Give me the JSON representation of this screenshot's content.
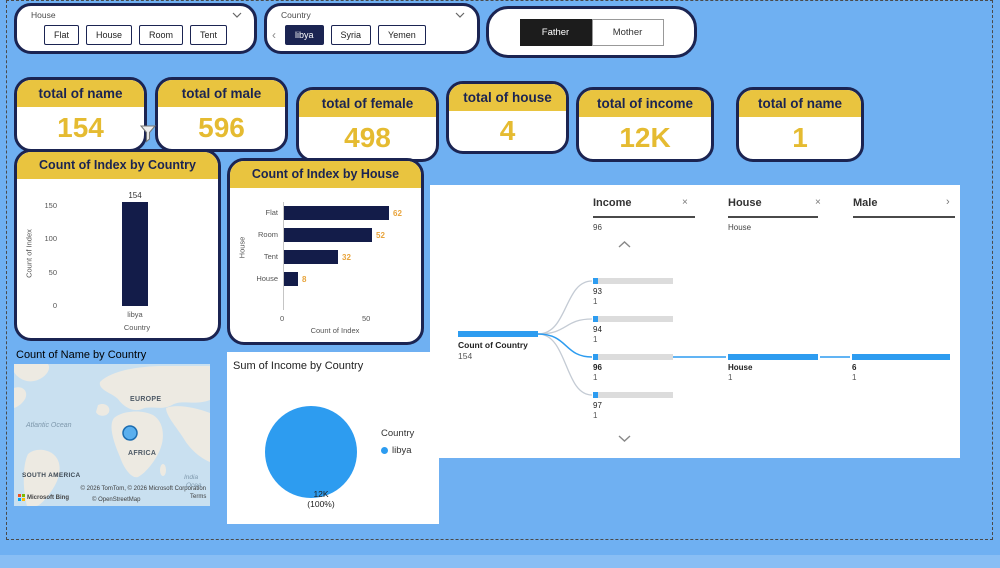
{
  "page": {
    "background": "#6FB0F2",
    "accent_navy": "#1B2452",
    "accent_yellow": "#E9C43F",
    "accent_blue": "#2D9CF0"
  },
  "icons": {
    "nav_left": "‹",
    "close": "×",
    "chevron_right": "›"
  },
  "slicers": {
    "house": {
      "header": "House",
      "options": [
        "Flat",
        "House",
        "Room",
        "Tent"
      ]
    },
    "country": {
      "header": "Country",
      "options": [
        "libya",
        "Syria",
        "Yemen"
      ],
      "selected": "libya"
    },
    "parent": {
      "options": [
        "Father",
        "Mother"
      ],
      "selected": "Father"
    }
  },
  "cards": [
    {
      "title": "total of name",
      "value": "154"
    },
    {
      "title": "total of male",
      "value": "596"
    },
    {
      "title": "total of female",
      "value": "498"
    },
    {
      "title": "total of house",
      "value": "4"
    },
    {
      "title": "total of income",
      "value": "12K"
    },
    {
      "title": "total of name",
      "value": "1"
    }
  ],
  "column_chart": {
    "title": "Count of Index by Country",
    "bar_label": "154",
    "category": "libya",
    "x_label": "Country",
    "y_label": "Count of Index",
    "y_ticks": [
      "150",
      "100",
      "50",
      "0"
    ]
  },
  "hbar_chart": {
    "title": "Count of Index by House",
    "x_label": "Count of Index",
    "y_label": "House",
    "x_ticks": [
      "0",
      "50"
    ],
    "rows": [
      {
        "category": "Flat",
        "value": "62"
      },
      {
        "category": "Room",
        "value": "52"
      },
      {
        "category": "Tent",
        "value": "32"
      },
      {
        "category": "House",
        "value": "8"
      }
    ]
  },
  "tree": {
    "columns": [
      {
        "label": "Income",
        "sub": "96"
      },
      {
        "label": "House",
        "sub": "House"
      },
      {
        "label": "Male",
        "sub": ""
      }
    ],
    "root": {
      "label": "Count of Country",
      "value": "154"
    },
    "level1": [
      {
        "label": "93",
        "value": "1"
      },
      {
        "label": "94",
        "value": "1"
      },
      {
        "label": "96",
        "value": "1"
      },
      {
        "label": "97",
        "value": "1"
      }
    ],
    "level2": {
      "label": "House",
      "value": "1"
    },
    "level3": {
      "label": "6",
      "value": "1"
    }
  },
  "map": {
    "title": "Count of Name by Country",
    "labels": {
      "europe": "EUROPE",
      "atlantic_ocean": "Atlantic Ocean",
      "africa": "AFRICA",
      "south_america": "SOUTH AMERICA",
      "indian_ocean_line1": "India",
      "indian_ocean_line2": "Ocea"
    },
    "attribution": "© 2026 TomTom, © 2026 Microsoft Corporation",
    "bing_label": "Microsoft Bing",
    "osm_label": "© OpenStreetMap",
    "terms_label": "Terms"
  },
  "pie": {
    "title": "Sum of Income by Country",
    "value_label": "12K",
    "percent_label": "(100%)",
    "legend_title": "Country",
    "legend_item": "libya"
  },
  "chart_data": [
    {
      "type": "bar",
      "title": "Count of Index by Country",
      "categories": [
        "libya"
      ],
      "values": [
        154
      ],
      "xlabel": "Country",
      "ylabel": "Count of Index",
      "ylim": [
        0,
        150
      ],
      "yticks": [
        0,
        50,
        100,
        150
      ],
      "orientation": "vertical",
      "bar_color": "#131C49"
    },
    {
      "type": "bar",
      "title": "Count of Index by House",
      "categories": [
        "Flat",
        "Room",
        "Tent",
        "House"
      ],
      "values": [
        62,
        52,
        32,
        8
      ],
      "xlabel": "Count of Index",
      "ylabel": "House",
      "xlim": [
        0,
        65
      ],
      "xticks": [
        0,
        50
      ],
      "orientation": "horizontal",
      "bar_color": "#131C49",
      "label_color": "#E8A43C"
    },
    {
      "type": "pie",
      "title": "Sum of Income by Country",
      "categories": [
        "libya"
      ],
      "values": [
        12000
      ],
      "value_labels": [
        "12K"
      ],
      "percents": [
        100
      ],
      "colors": [
        "#2D9CF0"
      ],
      "legend_position": "right",
      "legend_title": "Country"
    },
    {
      "type": "table",
      "title": "Decomposition tree: Count of Country by Income, House, Male",
      "root_measure": "Count of Country",
      "root_value": 154,
      "levels": [
        "Income",
        "House",
        "Male"
      ],
      "income_nodes": [
        {
          "income": 93,
          "count": 1
        },
        {
          "income": 94,
          "count": 1
        },
        {
          "income": 96,
          "count": 1
        },
        {
          "income": 97,
          "count": 1
        }
      ],
      "expanded_path": [
        {
          "level": "Income",
          "value": 96,
          "count": 1
        },
        {
          "level": "House",
          "value": "House",
          "count": 1
        },
        {
          "level": "Male",
          "value": 6,
          "count": 1
        }
      ]
    },
    {
      "type": "map",
      "title": "Count of Name by Country",
      "markers": [
        {
          "location": "libya",
          "shape": "circle"
        }
      ]
    }
  ]
}
